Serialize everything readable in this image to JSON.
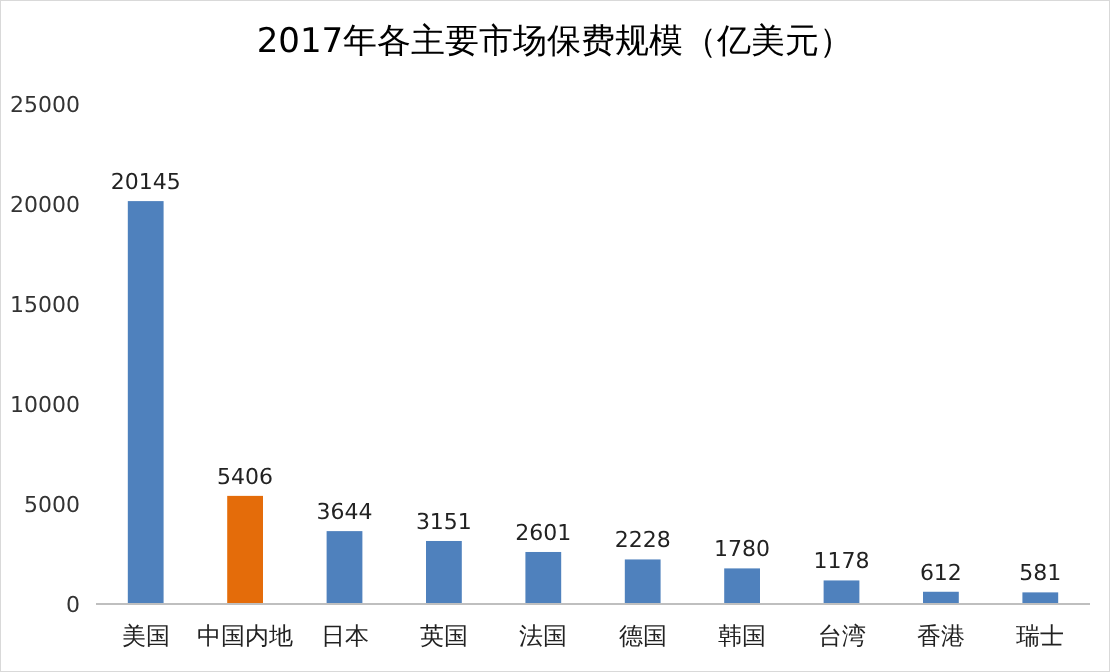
{
  "chart_data": {
    "type": "bar",
    "title": "2017年各主要市场保费规模（亿美元）",
    "categories": [
      "美国",
      "中国内地",
      "日本",
      "英国",
      "法国",
      "德国",
      "韩国",
      "台湾",
      "香港",
      "瑞士"
    ],
    "values": [
      20145,
      5406,
      3644,
      3151,
      2601,
      2228,
      1780,
      1178,
      612,
      581
    ],
    "colors": [
      "#4f81bd",
      "#e46c0a",
      "#4f81bd",
      "#4f81bd",
      "#4f81bd",
      "#4f81bd",
      "#4f81bd",
      "#4f81bd",
      "#4f81bd",
      "#4f81bd"
    ],
    "ylim": [
      0,
      25000
    ],
    "yticks": [
      0,
      5000,
      10000,
      15000,
      20000,
      25000
    ],
    "grid": false,
    "data_labels": true
  }
}
